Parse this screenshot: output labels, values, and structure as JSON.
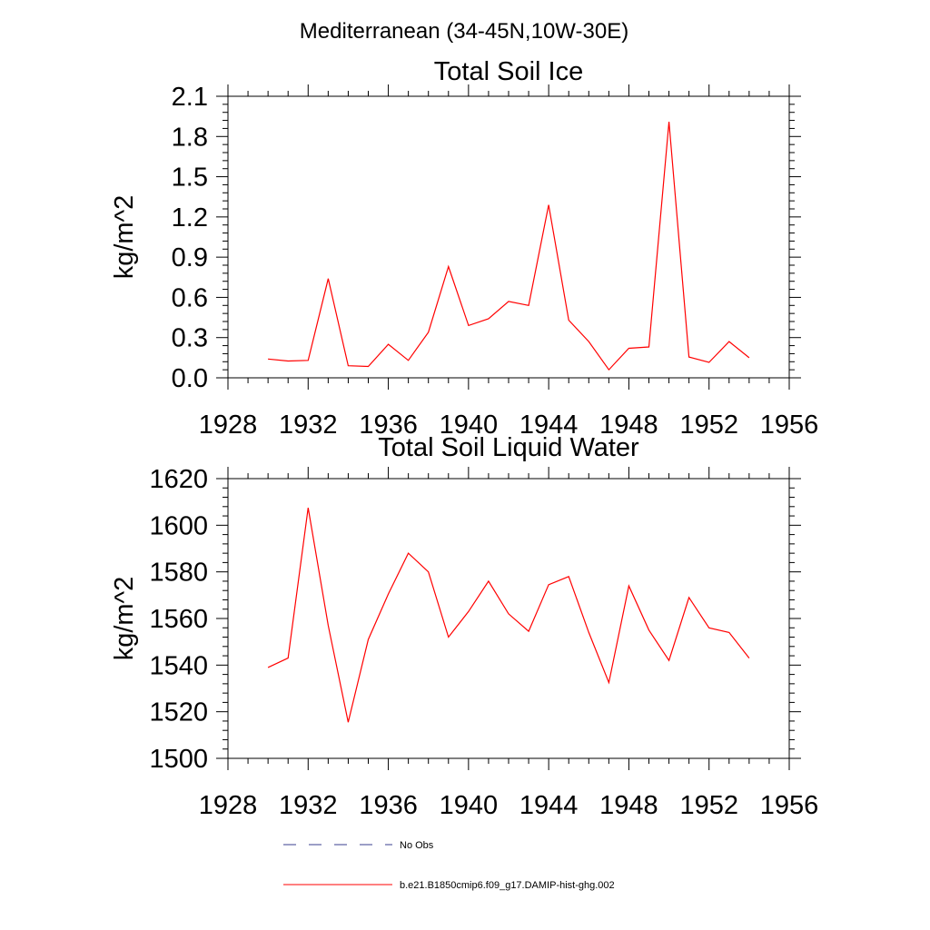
{
  "page_title": "Mediterranean (34-45N,10W-30E)",
  "legend": {
    "entries": [
      {
        "label": "No Obs",
        "color": "#3a3f8f",
        "style": "dashed"
      },
      {
        "label": "b.e21.B1850cmip6.f09_g17.DAMIP-hist-ghg.002",
        "color": "#ff0000",
        "style": "solid"
      }
    ]
  },
  "chart_data": [
    {
      "type": "line",
      "title": "Total Soil Ice",
      "xlabel": "",
      "ylabel": "kg/m^2",
      "xlim": [
        1928,
        1956
      ],
      "ylim": [
        0.0,
        2.1
      ],
      "x_ticks": [
        1928,
        1932,
        1936,
        1940,
        1944,
        1948,
        1952,
        1956
      ],
      "y_ticks": [
        "0.0",
        "0.3",
        "0.6",
        "0.9",
        "1.2",
        "1.5",
        "1.8",
        "2.1"
      ],
      "y_tick_values": [
        0.0,
        0.3,
        0.6,
        0.9,
        1.2,
        1.5,
        1.8,
        2.1
      ],
      "grid": false,
      "series": [
        {
          "color": "#ff0000",
          "x": [
            1930,
            1931,
            1932,
            1933,
            1934,
            1935,
            1936,
            1937,
            1938,
            1939,
            1940,
            1941,
            1942,
            1943,
            1944,
            1945,
            1946,
            1947,
            1948,
            1949,
            1950,
            1951,
            1952,
            1953,
            1954
          ],
          "values": [
            0.14,
            0.125,
            0.13,
            0.74,
            0.09,
            0.085,
            0.25,
            0.13,
            0.34,
            0.83,
            0.39,
            0.44,
            0.57,
            0.54,
            1.29,
            0.43,
            0.27,
            0.06,
            0.22,
            0.23,
            1.91,
            0.155,
            0.115,
            0.27,
            0.15
          ]
        }
      ]
    },
    {
      "type": "line",
      "title": "Total Soil Liquid Water",
      "xlabel": "",
      "ylabel": "kg/m^2",
      "xlim": [
        1928,
        1956
      ],
      "ylim": [
        1500,
        1620
      ],
      "x_ticks": [
        1928,
        1932,
        1936,
        1940,
        1944,
        1948,
        1952,
        1956
      ],
      "y_ticks": [
        "1500",
        "1520",
        "1540",
        "1560",
        "1580",
        "1600",
        "1620"
      ],
      "y_tick_values": [
        1500,
        1520,
        1540,
        1560,
        1580,
        1600,
        1620
      ],
      "grid": false,
      "series": [
        {
          "color": "#ff0000",
          "x": [
            1930,
            1931,
            1932,
            1933,
            1934,
            1935,
            1936,
            1937,
            1938,
            1939,
            1940,
            1941,
            1942,
            1943,
            1944,
            1945,
            1946,
            1947,
            1948,
            1949,
            1950,
            1951,
            1952,
            1953,
            1954
          ],
          "values": [
            1539,
            1543,
            1607.5,
            1557,
            1515.5,
            1551,
            1570.5,
            1588,
            1580,
            1552,
            1563,
            1576,
            1562,
            1554.5,
            1574.5,
            1578,
            1554,
            1532.5,
            1574,
            1555,
            1542,
            1569,
            1556,
            1554,
            1543
          ]
        }
      ]
    }
  ]
}
